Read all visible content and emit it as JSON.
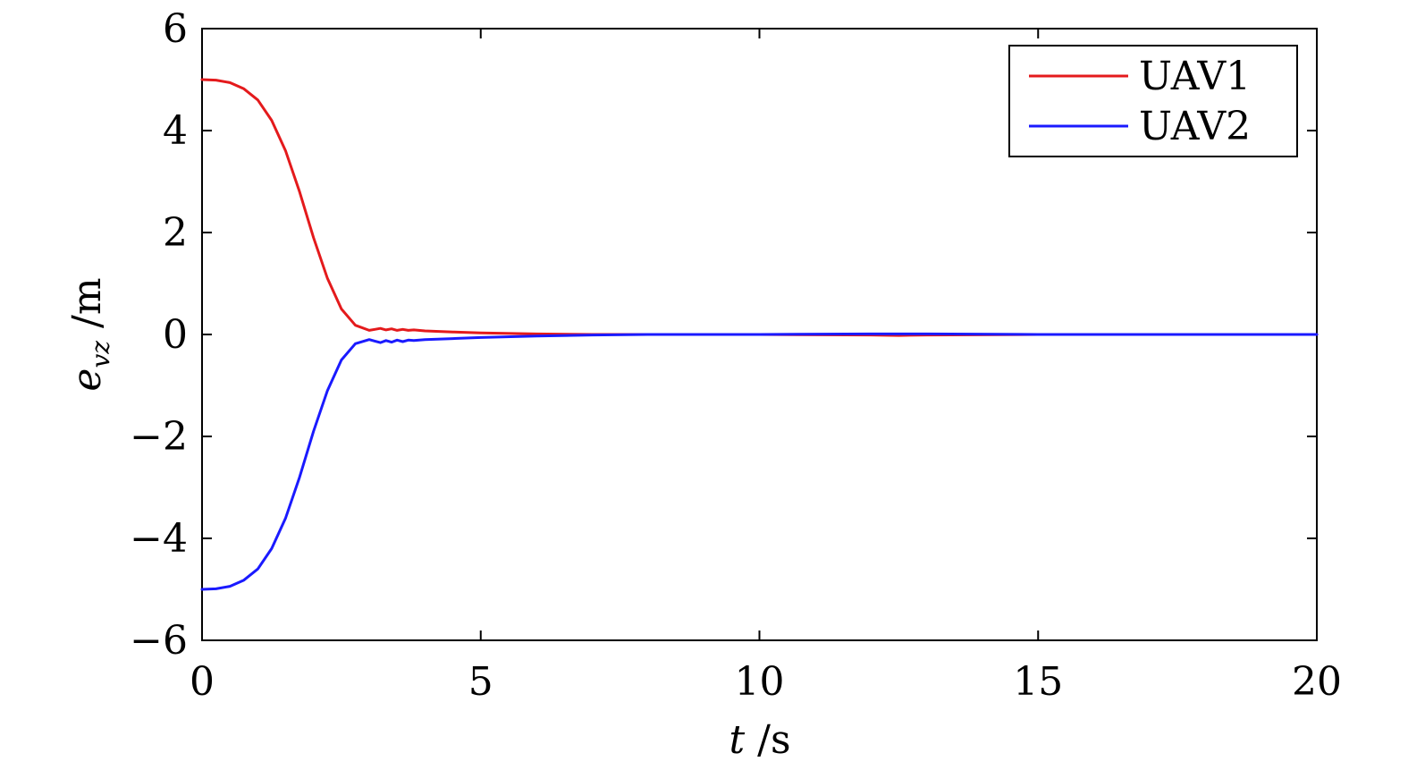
{
  "chart_data": {
    "type": "line",
    "xlabel": {
      "var": "t",
      "unit": "/s"
    },
    "ylabel": {
      "var": "e",
      "sub": "vz",
      "unit": "/m"
    },
    "xlim": [
      0,
      20
    ],
    "ylim": [
      -6,
      6
    ],
    "xticks": [
      0,
      5,
      10,
      15,
      20
    ],
    "xtick_labels": [
      "0",
      "5",
      "10",
      "15",
      "20"
    ],
    "yticks": [
      -6,
      -4,
      -2,
      0,
      2,
      4,
      6
    ],
    "ytick_labels": [
      "−6",
      "−4",
      "−2",
      "0",
      "2",
      "4",
      "6"
    ],
    "grid": false,
    "legend_position": "top-right",
    "series": [
      {
        "name": "UAV1",
        "color": "#e41a1c",
        "x": [
          0,
          0.25,
          0.5,
          0.75,
          1.0,
          1.25,
          1.5,
          1.75,
          2.0,
          2.25,
          2.5,
          2.75,
          3.0,
          3.1,
          3.2,
          3.3,
          3.4,
          3.5,
          3.6,
          3.7,
          3.8,
          4.0,
          4.5,
          5.0,
          6.0,
          7.0,
          8.0,
          10.0,
          12.0,
          12.5,
          13.0,
          15.0,
          20.0
        ],
        "values": [
          5.0,
          4.99,
          4.94,
          4.82,
          4.6,
          4.2,
          3.6,
          2.8,
          1.9,
          1.1,
          0.5,
          0.18,
          0.08,
          0.1,
          0.12,
          0.09,
          0.11,
          0.08,
          0.1,
          0.08,
          0.09,
          0.07,
          0.05,
          0.03,
          0.01,
          0.0,
          0.0,
          0.0,
          -0.01,
          -0.02,
          -0.01,
          0.0,
          0.0
        ]
      },
      {
        "name": "UAV2",
        "color": "#1a1aff",
        "x": [
          0,
          0.25,
          0.5,
          0.75,
          1.0,
          1.25,
          1.5,
          1.75,
          2.0,
          2.25,
          2.5,
          2.75,
          3.0,
          3.1,
          3.2,
          3.3,
          3.4,
          3.5,
          3.6,
          3.7,
          3.8,
          4.0,
          4.5,
          5.0,
          6.0,
          7.0,
          8.0,
          10.0,
          12.0,
          13.0,
          15.0,
          20.0
        ],
        "values": [
          -5.0,
          -4.99,
          -4.94,
          -4.82,
          -4.6,
          -4.2,
          -3.6,
          -2.8,
          -1.9,
          -1.1,
          -0.5,
          -0.18,
          -0.1,
          -0.13,
          -0.16,
          -0.12,
          -0.15,
          -0.11,
          -0.14,
          -0.11,
          -0.12,
          -0.1,
          -0.08,
          -0.06,
          -0.03,
          -0.01,
          0.0,
          0.0,
          0.01,
          0.01,
          0.0,
          0.0
        ]
      }
    ]
  }
}
